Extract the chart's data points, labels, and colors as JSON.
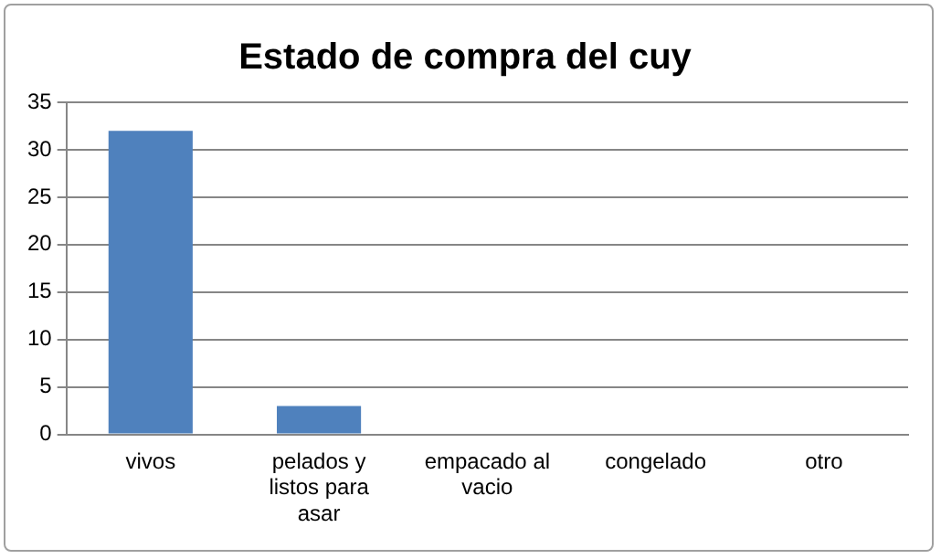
{
  "chart_data": {
    "type": "bar",
    "title": "Estado de compra del cuy",
    "categories": [
      "vivos",
      "pelados y listos para asar",
      "empacado al vacio",
      "congelado",
      "otro"
    ],
    "values": [
      32,
      3,
      0,
      0,
      0
    ],
    "color": "#4f81bd",
    "ylim": [
      0,
      35
    ],
    "yticks": [
      0,
      5,
      10,
      15,
      20,
      25,
      30,
      35
    ],
    "grid": "y",
    "legend": false
  }
}
